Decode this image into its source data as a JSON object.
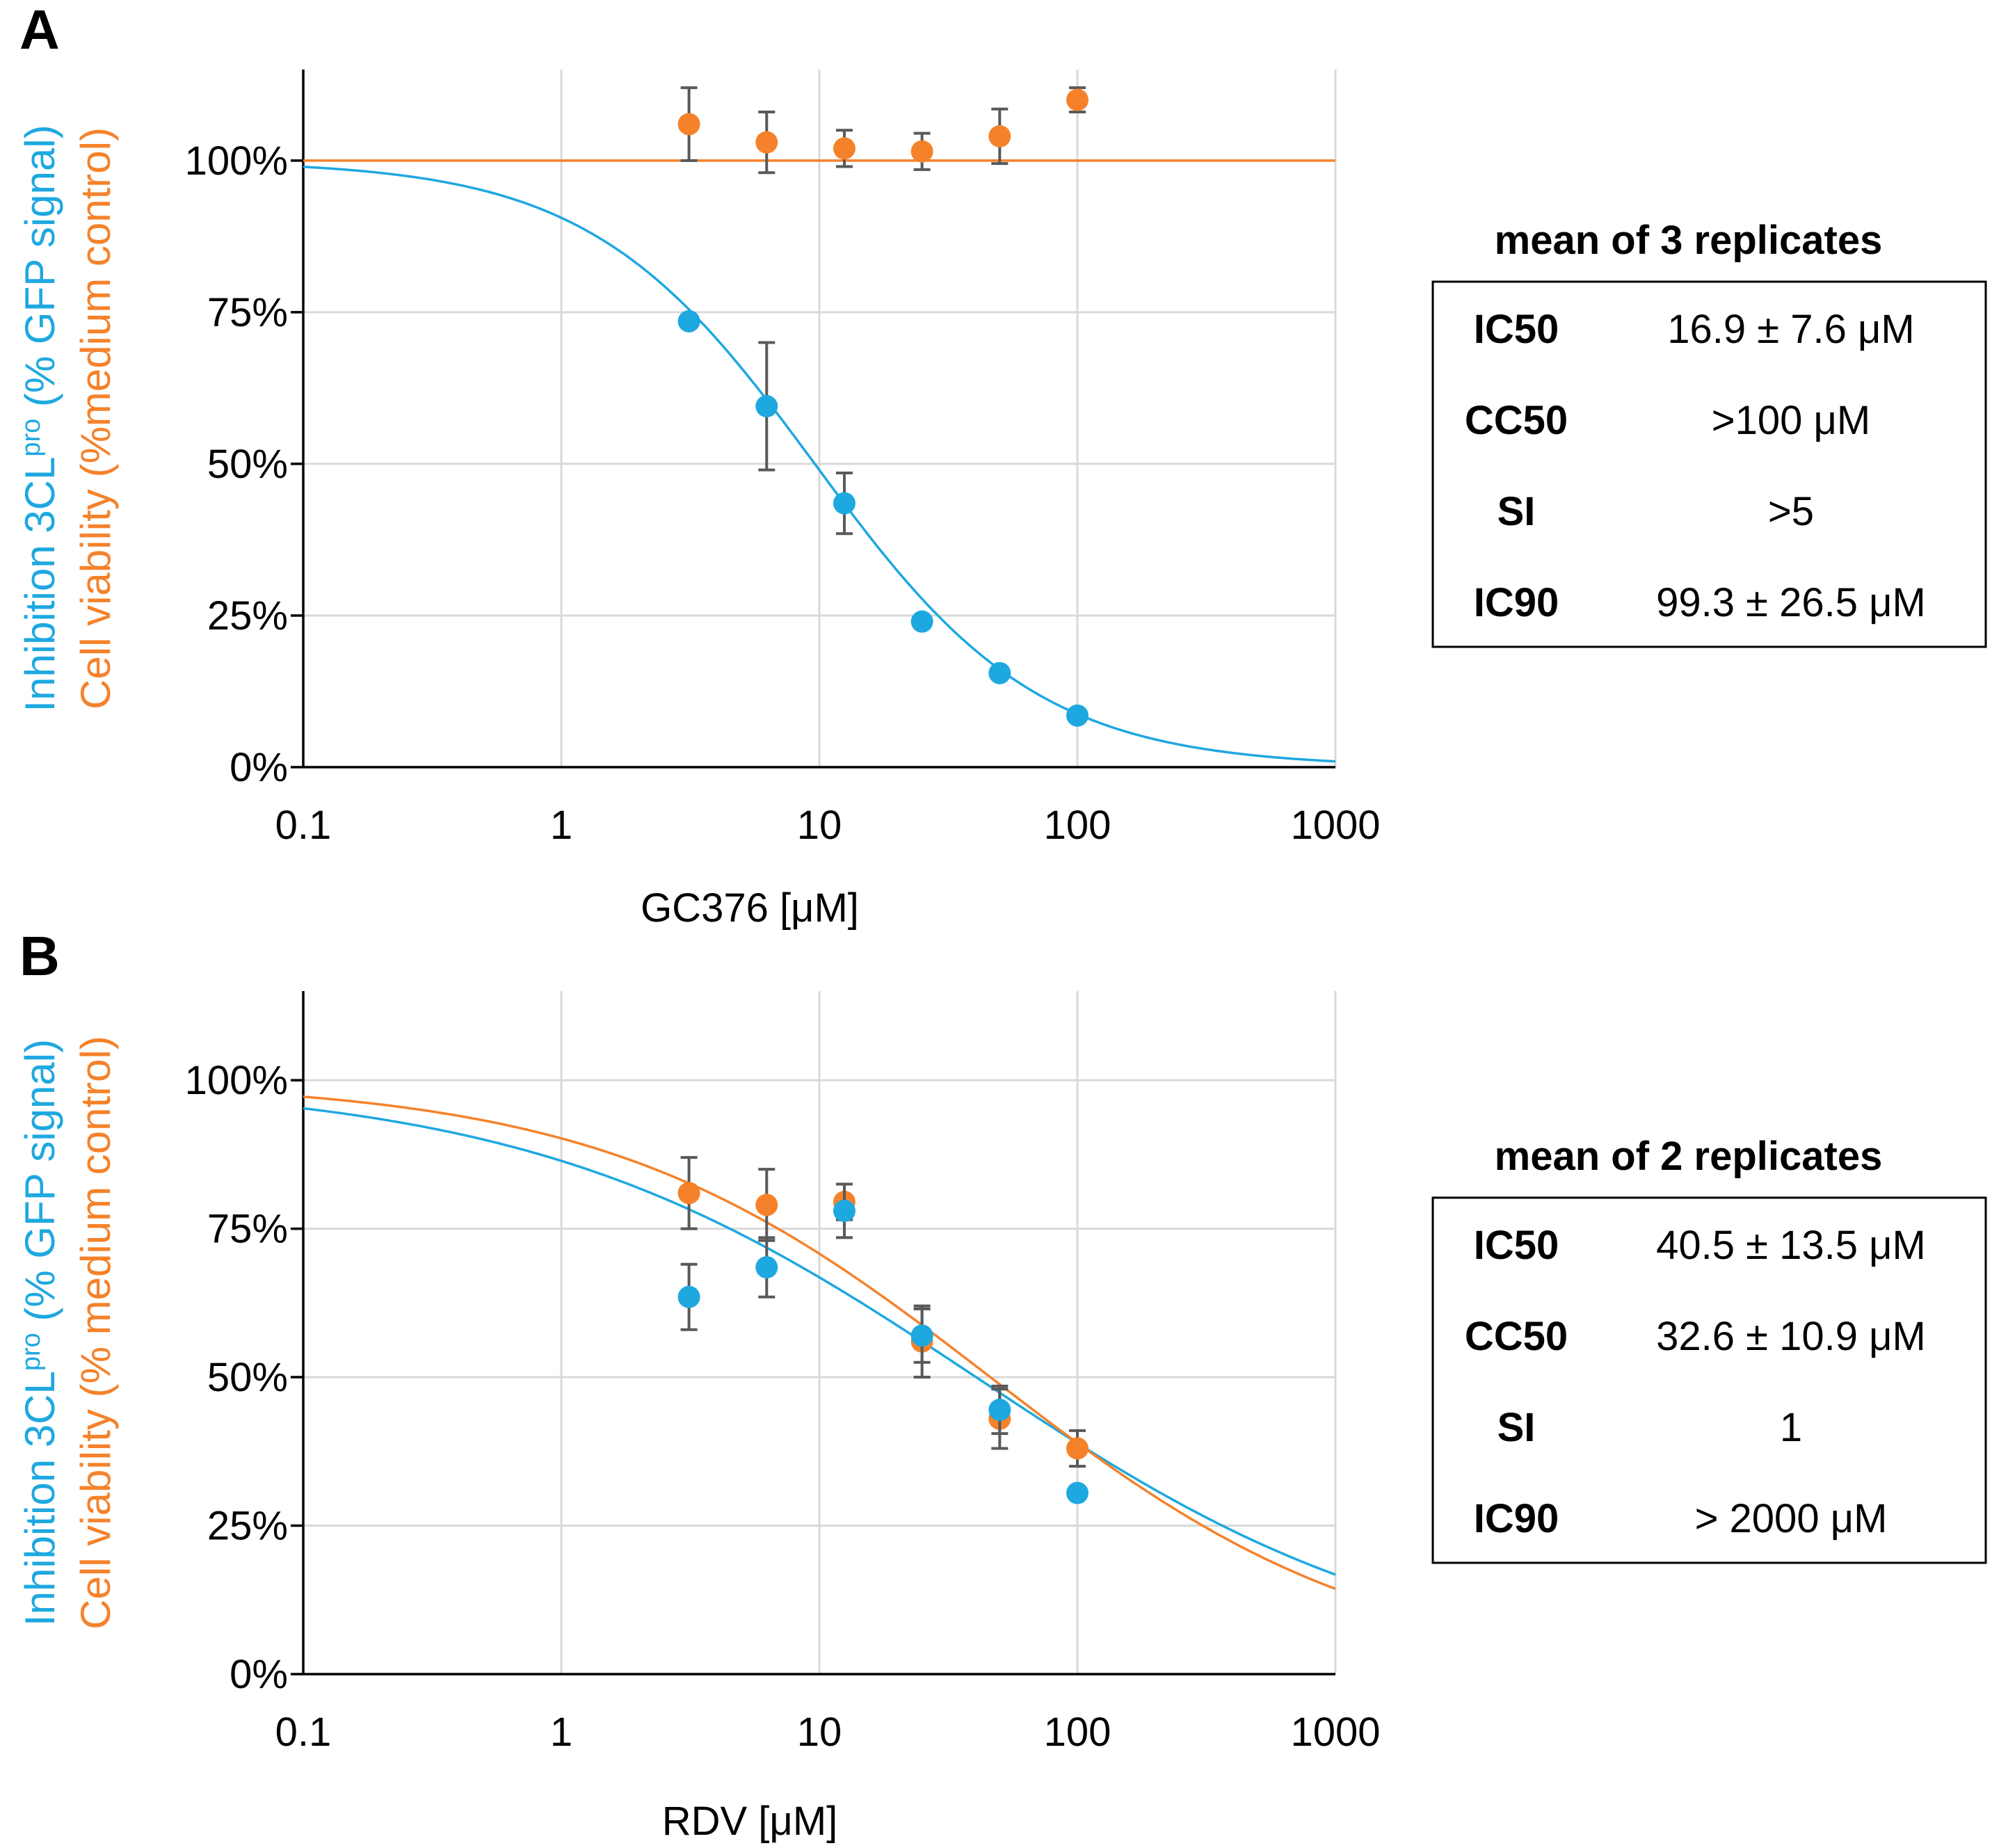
{
  "colors": {
    "inhibition": "#1ea8e0",
    "viability": "#f5822a",
    "errorbar": "#595959"
  },
  "chart_data": [
    {
      "panel": "A",
      "type": "scatter",
      "x_scale": "log",
      "xlim": [
        0.1,
        1000
      ],
      "x_ticks": [
        0.1,
        1,
        10,
        100,
        1000
      ],
      "x_tick_labels": [
        "0.1",
        "1",
        "10",
        "100",
        "1000"
      ],
      "ylim": [
        0,
        115
      ],
      "y_ticks": [
        0,
        25,
        50,
        75,
        100
      ],
      "y_tick_labels": [
        "0%",
        "25%",
        "50%",
        "75%",
        "100%"
      ],
      "xlabel": "GC376 [μM]",
      "ylabel_inhibition": "Inhibition 3CL",
      "ylabel_inhibition_sup": "pro",
      "ylabel_inhibition_suffix": " (% GFP signal)",
      "ylabel_viability": "Cell viability  (%medium control)",
      "series": [
        {
          "name": "Inhibition",
          "color": "#1ea8e0",
          "x": [
            3.125,
            6.25,
            12.5,
            25,
            50,
            100
          ],
          "y": [
            73.5,
            59.5,
            43.5,
            24,
            15.5,
            8.5
          ],
          "err": [
            0,
            10.5,
            5,
            0,
            0,
            0
          ],
          "fit": {
            "model": "hill",
            "top": 100,
            "ec50": 9.6,
            "hill": 1.0,
            "offset": 0
          }
        },
        {
          "name": "Cell viability",
          "color": "#f5822a",
          "x": [
            3.125,
            6.25,
            12.5,
            25,
            50,
            100
          ],
          "y": [
            106,
            103,
            102,
            101.5,
            104,
            110
          ],
          "err": [
            6,
            5,
            3,
            3,
            4.5,
            2
          ],
          "fit": {
            "model": "constant",
            "value": 100
          }
        }
      ],
      "stats": {
        "heading": "mean of 3 replicates",
        "rows": [
          {
            "label": "IC50",
            "value": "16.9 ± 7.6 μM"
          },
          {
            "label": "CC50",
            "value": ">100 μM"
          },
          {
            "label": "SI",
            "value": ">5"
          },
          {
            "label": "IC90",
            "value": "99.3 ± 26.5 μM"
          }
        ]
      }
    },
    {
      "panel": "B",
      "type": "scatter",
      "x_scale": "log",
      "xlim": [
        0.1,
        1000
      ],
      "x_ticks": [
        0.1,
        1,
        10,
        100,
        1000
      ],
      "x_tick_labels": [
        "0.1",
        "1",
        "10",
        "100",
        "1000"
      ],
      "ylim": [
        0,
        115
      ],
      "y_ticks": [
        0,
        25,
        50,
        75,
        100
      ],
      "y_tick_labels": [
        "0%",
        "25%",
        "50%",
        "75%",
        "100%"
      ],
      "xlabel": "RDV [μM]",
      "ylabel_inhibition": "Inhibition 3CL",
      "ylabel_inhibition_sup": "pro",
      "ylabel_inhibition_suffix": " (% GFP signal)",
      "ylabel_viability": "Cell viability  (% medium control)",
      "series": [
        {
          "name": "Inhibition",
          "color": "#1ea8e0",
          "x": [
            3.125,
            6.25,
            12.5,
            25,
            50,
            100
          ],
          "y": [
            63.5,
            68.5,
            78,
            57,
            44.5,
            30.5
          ],
          "err": [
            5.5,
            5,
            4.5,
            4.5,
            4,
            0
          ],
          "fit": {
            "model": "hill",
            "top": 100,
            "ec50": 40.5,
            "hill": 0.5,
            "offset": 0
          }
        },
        {
          "name": "Cell viability",
          "color": "#f5822a",
          "x": [
            3.125,
            6.25,
            12.5,
            25,
            50,
            100
          ],
          "y": [
            81,
            79,
            79.5,
            56,
            43,
            38
          ],
          "err": [
            6,
            6,
            3,
            6,
            5,
            3
          ],
          "fit": {
            "model": "hill",
            "top": 100,
            "ec50": 46,
            "hill": 0.58,
            "offset": 0
          }
        }
      ],
      "stats": {
        "heading": "mean of 2 replicates",
        "rows": [
          {
            "label": "IC50",
            "value": "40.5 ± 13.5 μM"
          },
          {
            "label": "CC50",
            "value": "32.6 ± 10.9 μM"
          },
          {
            "label": "SI",
            "value": "1"
          },
          {
            "label": "IC90",
            "value": "> 2000 μM"
          }
        ]
      }
    }
  ]
}
